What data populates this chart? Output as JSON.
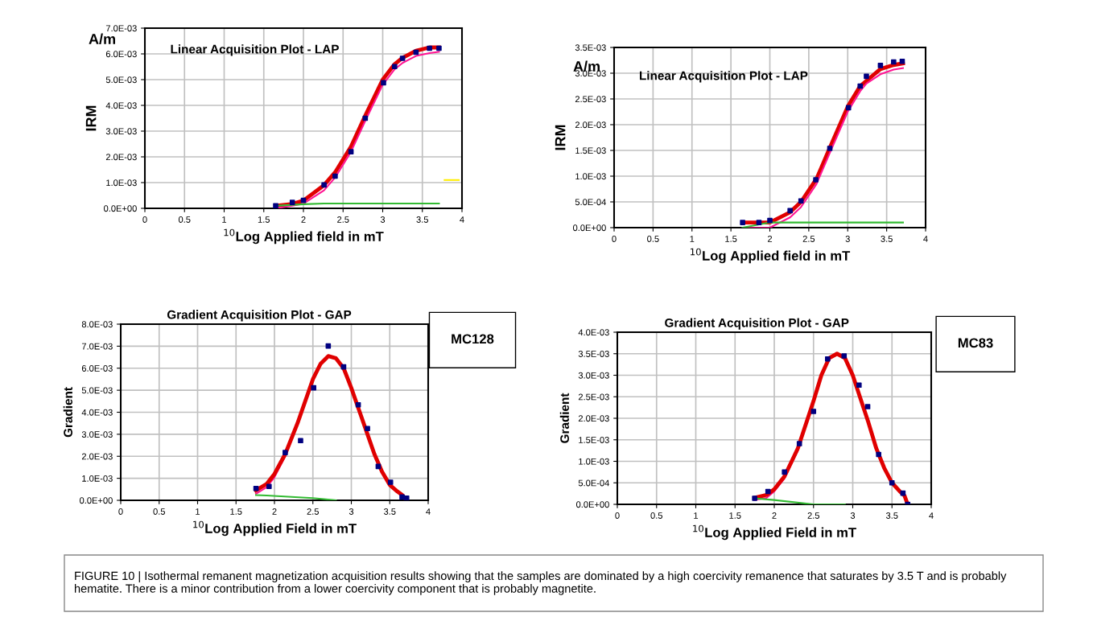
{
  "chart_data": [
    {
      "type": "line",
      "title": "Linear Acquisition Plot - LAP",
      "xlabel": "$^{10}$Log Applied field in mT",
      "ylabel": "IRM",
      "annotations": [
        "A/m"
      ],
      "xlim": [
        0,
        4
      ],
      "xticks": [
        0,
        0.5,
        1,
        1.5,
        2,
        2.5,
        3,
        3.5,
        4
      ],
      "ylim": [
        0,
        0.007
      ],
      "yticks": [
        {
          "value": 0,
          "label": "0.0E+00"
        },
        {
          "value": 0.001,
          "label": "1.0E-03"
        },
        {
          "value": 0.002,
          "label": "2.0E-03"
        },
        {
          "value": 0.003,
          "label": "3.0E-03"
        },
        {
          "value": 0.004,
          "label": "4.0E-03"
        },
        {
          "value": 0.005,
          "label": "5.0E-03"
        },
        {
          "value": 0.006,
          "label": "6.0E-03"
        },
        {
          "value": 0.007,
          "label": "7.0E-03"
        }
      ],
      "grid": true,
      "series": [
        {
          "type": "line",
          "color": "#e00000",
          "x": [
            1.65,
            1.86,
            2.0,
            2.26,
            2.4,
            2.6,
            2.78,
            3.0,
            3.15,
            3.25,
            3.42,
            3.59,
            3.71
          ],
          "values": [
            0.0001,
            0.00017,
            0.0003,
            0.0009,
            0.0014,
            0.0024,
            0.0036,
            0.005,
            0.0056,
            0.00585,
            0.00612,
            0.00625,
            0.00625
          ]
        },
        {
          "type": "line",
          "color": "#ff1493",
          "x": [
            1.65,
            1.86,
            2.0,
            2.26,
            2.4,
            2.6,
            2.78,
            3.0,
            3.15,
            3.25,
            3.42,
            3.59,
            3.71
          ],
          "values": [
            0.0,
            0.0001,
            0.00018,
            0.0007,
            0.0012,
            0.0022,
            0.0034,
            0.0048,
            0.0054,
            0.00565,
            0.00592,
            0.00603,
            0.00608
          ]
        },
        {
          "type": "line",
          "color": "#33bb33",
          "x": [
            1.65,
            2.0,
            2.26,
            3.71
          ],
          "values": [
            0.0001,
            0.00016,
            0.00019,
            0.00019
          ]
        },
        {
          "type": "line",
          "color": "#ffee00",
          "x": [
            3.78,
            3.96
          ],
          "values": [
            0.0011,
            0.0011
          ]
        },
        {
          "type": "scatter",
          "color": "#000080",
          "marker": "square",
          "x": [
            1.65,
            1.86,
            2.0,
            2.26,
            2.4,
            2.6,
            2.78,
            3.01,
            3.15,
            3.25,
            3.42,
            3.59,
            3.71
          ],
          "values": [
            0.0001,
            0.00023,
            0.00031,
            0.00091,
            0.00125,
            0.0022,
            0.0035,
            0.00488,
            0.00551,
            0.00583,
            0.00606,
            0.00622,
            0.00622
          ]
        }
      ]
    },
    {
      "type": "line",
      "title": "Linear Acquisition Plot - LAP",
      "xlabel": "$^{10}$Log Applied field in mT",
      "ylabel": "IRM",
      "annotations": [
        "A/m"
      ],
      "xlim": [
        0,
        4
      ],
      "xticks": [
        0,
        0.5,
        1,
        1.5,
        2,
        2.5,
        3,
        3.5,
        4
      ],
      "ylim": [
        0,
        0.0035
      ],
      "yticks": [
        {
          "value": 0,
          "label": "0.0E+00"
        },
        {
          "value": 0.0005,
          "label": "5.0E-04"
        },
        {
          "value": 0.001,
          "label": "1.0E-03"
        },
        {
          "value": 0.0015,
          "label": "1.5E-03"
        },
        {
          "value": 0.002,
          "label": "2.0E-03"
        },
        {
          "value": 0.0025,
          "label": "2.5E-03"
        },
        {
          "value": 0.003,
          "label": "3.0E-03"
        },
        {
          "value": 0.0035,
          "label": "3.5E-03"
        }
      ],
      "grid": true,
      "series": [
        {
          "type": "line",
          "color": "#e00000",
          "x": [
            1.65,
            2.0,
            2.26,
            2.4,
            2.6,
            2.77,
            3.0,
            3.16,
            3.42,
            3.59,
            3.71
          ],
          "values": [
            0.0001,
            0.0001,
            0.0003,
            0.0005,
            0.00095,
            0.00155,
            0.00235,
            0.00275,
            0.00308,
            0.00316,
            0.00319
          ]
        },
        {
          "type": "line",
          "color": "#ff1493",
          "x": [
            1.65,
            2.0,
            2.26,
            2.4,
            2.6,
            2.77,
            3.0,
            3.16,
            3.24,
            3.42,
            3.59,
            3.71
          ],
          "values": [
            0.0,
            0.0,
            0.0002,
            0.0004,
            0.00085,
            0.00145,
            0.00225,
            0.00265,
            0.0028,
            0.00298,
            0.00307,
            0.0031
          ]
        },
        {
          "type": "line",
          "color": "#33bb33",
          "x": [
            1.65,
            2.0,
            3.71
          ],
          "values": [
            0.0,
            0.0001,
            0.0001
          ]
        },
        {
          "type": "scatter",
          "color": "#000080",
          "marker": "square",
          "x": [
            1.65,
            1.86,
            2.0,
            2.26,
            2.4,
            2.59,
            2.77,
            3.01,
            3.16,
            3.24,
            3.42,
            3.59,
            3.7
          ],
          "values": [
            0.0001,
            0.0001,
            0.00014,
            0.00033,
            0.00052,
            0.00093,
            0.00154,
            0.00233,
            0.00275,
            0.00294,
            0.00315,
            0.00322,
            0.00323
          ]
        }
      ]
    },
    {
      "type": "line",
      "title": "Gradient Acquisition Plot - GAP",
      "xlabel": "$^{10}$Log Applied Field in mT",
      "ylabel": "Gradient",
      "annotations": [
        "MC128"
      ],
      "xlim": [
        0,
        4
      ],
      "xticks": [
        0,
        0.5,
        1,
        1.5,
        2,
        2.5,
        3,
        3.5,
        4
      ],
      "ylim": [
        0,
        0.008
      ],
      "yticks": [
        {
          "value": 0,
          "label": "0.0E+00"
        },
        {
          "value": 0.001,
          "label": "1.0E-03"
        },
        {
          "value": 0.002,
          "label": "2.0E-03"
        },
        {
          "value": 0.003,
          "label": "3.0E-03"
        },
        {
          "value": 0.004,
          "label": "4.0E-03"
        },
        {
          "value": 0.005,
          "label": "5.0E-03"
        },
        {
          "value": 0.006,
          "label": "6.0E-03"
        },
        {
          "value": 0.007,
          "label": "7.0E-03"
        },
        {
          "value": 0.008,
          "label": "8.0E-03"
        }
      ],
      "grid": true,
      "series": [
        {
          "type": "line",
          "color": "#ff1493",
          "x": [
            1.76,
            1.9,
            2.0,
            2.14,
            2.3
          ],
          "values": [
            0.0003,
            0.0006,
            0.00105,
            0.002,
            0.00345
          ]
        },
        {
          "type": "line",
          "color": "#e00000",
          "x": [
            1.76,
            1.9,
            2.0,
            2.14,
            2.3,
            2.5,
            2.6,
            2.7,
            2.8,
            2.9,
            3.0,
            3.1,
            3.2,
            3.3,
            3.4,
            3.5,
            3.6,
            3.66,
            3.72
          ],
          "values": [
            0.00045,
            0.00075,
            0.0012,
            0.0021,
            0.0035,
            0.0055,
            0.0062,
            0.00655,
            0.00645,
            0.006,
            0.0051,
            0.0041,
            0.0031,
            0.0021,
            0.0013,
            0.0007,
            0.0004,
            0.00025,
            0.0
          ]
        },
        {
          "type": "line",
          "color": "#33bb33",
          "x": [
            1.76,
            1.9,
            2.5,
            2.8
          ],
          "values": [
            0.00024,
            0.00022,
            0.0001,
            0.0
          ]
        },
        {
          "type": "scatter",
          "color": "#000080",
          "marker": "square",
          "x": [
            1.76,
            1.93,
            2.14,
            2.34,
            2.51,
            2.7,
            2.9,
            3.09,
            3.21,
            3.35,
            3.51,
            3.66,
            3.72
          ],
          "values": [
            0.00054,
            0.00063,
            0.00217,
            0.00271,
            0.00511,
            0.00701,
            0.00606,
            0.00434,
            0.00326,
            0.00154,
            0.00082,
            0.00015,
            0.0001
          ]
        }
      ]
    },
    {
      "type": "line",
      "title": "Gradient Acquisition Plot - GAP",
      "xlabel": "$^{10}$Log Applied Field in mT",
      "ylabel": "Gradient",
      "annotations": [
        "MC83",
        "FIGURE 10 | Isothermal remanent magnetization acquisition results showing that the samples are dominated by a high coercivity remanence that saturates by 3.5 T and is probably hematite. There is a minor contribution from a lower coercivity component that is probably magnetite."
      ],
      "xlim": [
        0,
        4
      ],
      "xticks": [
        0,
        0.5,
        1,
        1.5,
        2,
        2.5,
        3,
        3.5,
        4
      ],
      "ylim": [
        0,
        0.004
      ],
      "yticks": [
        {
          "value": 0,
          "label": "0.0E+00"
        },
        {
          "value": 0.0005,
          "label": "5.0E-04"
        },
        {
          "value": 0.001,
          "label": "1.0E-03"
        },
        {
          "value": 0.0015,
          "label": "1.5E-03"
        },
        {
          "value": 0.002,
          "label": "2.0E-03"
        },
        {
          "value": 0.0025,
          "label": "2.5E-03"
        },
        {
          "value": 0.003,
          "label": "3.0E-03"
        },
        {
          "value": 0.0035,
          "label": "3.5E-03"
        },
        {
          "value": 0.004,
          "label": "4.0E-03"
        }
      ],
      "grid": true,
      "series": [
        {
          "type": "line",
          "color": "#ff1493",
          "x": [
            1.75,
            1.9,
            2.0,
            2.13,
            2.3
          ],
          "values": [
            0.0001,
            0.00015,
            0.0003,
            0.0006,
            0.00125
          ]
        },
        {
          "type": "line",
          "color": "#e00000",
          "x": [
            1.75,
            1.9,
            2.0,
            2.13,
            2.3,
            2.5,
            2.6,
            2.7,
            2.8,
            2.9,
            3.0,
            3.1,
            3.2,
            3.3,
            3.4,
            3.5,
            3.6,
            3.66,
            3.7
          ],
          "values": [
            0.00015,
            0.00022,
            0.00035,
            0.00065,
            0.0013,
            0.0024,
            0.003,
            0.0034,
            0.0035,
            0.0034,
            0.003,
            0.00245,
            0.0019,
            0.0013,
            0.00085,
            0.0005,
            0.0003,
            0.0002,
            0.0
          ]
        },
        {
          "type": "line",
          "color": "#33bb33",
          "x": [
            1.75,
            2.0,
            2.5,
            2.9
          ],
          "values": [
            0.00014,
            0.0001,
            0.0,
            0.0
          ]
        },
        {
          "type": "scatter",
          "color": "#000080",
          "marker": "square",
          "x": [
            1.75,
            1.92,
            2.13,
            2.32,
            2.5,
            2.68,
            2.89,
            3.08,
            3.19,
            3.33,
            3.5,
            3.64,
            3.7
          ],
          "values": [
            0.00014,
            0.0003,
            0.00075,
            0.00141,
            0.00216,
            0.00338,
            0.00345,
            0.00277,
            0.00227,
            0.00116,
            0.0005,
            0.00026,
            0.0
          ]
        }
      ]
    }
  ]
}
